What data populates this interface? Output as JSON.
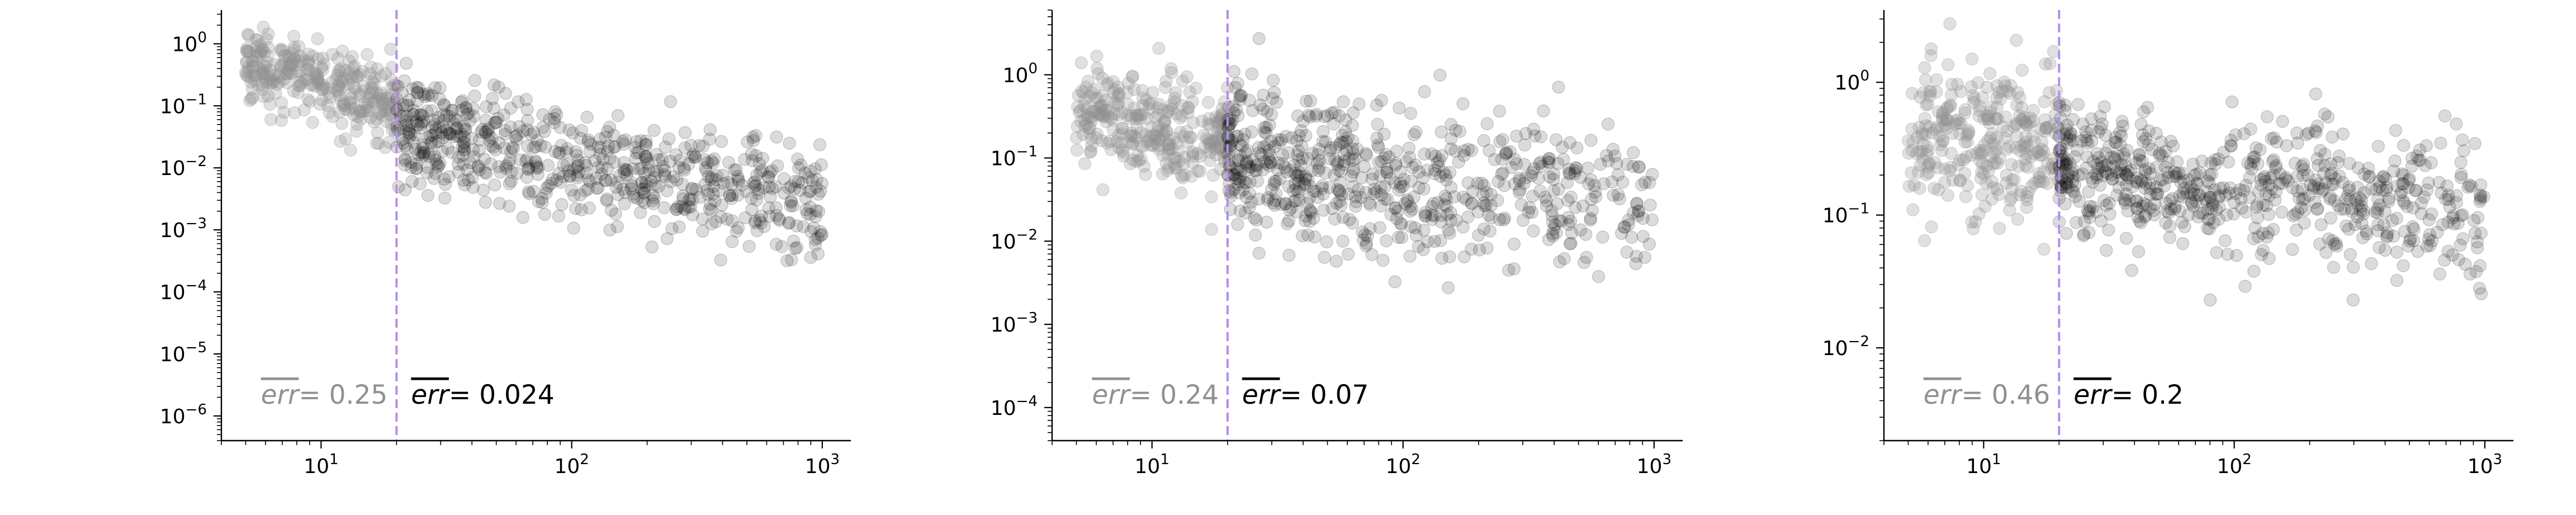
{
  "figure": {
    "background": "#ffffff",
    "reference_color": "#b48cf0",
    "left_color": "#8f918f",
    "right_color": "#000000"
  },
  "chart_data": [
    {
      "type": "scatter",
      "title": "",
      "xlabel": "",
      "ylabel": "",
      "xscale": "log",
      "yscale": "log",
      "xlim": [
        4,
        1300
      ],
      "ylim": [
        4e-07,
        3.5
      ],
      "x_ticks": [
        10,
        100,
        1000
      ],
      "x_tick_labels": [
        {
          "base": "10",
          "exp": "1"
        },
        {
          "base": "10",
          "exp": "2"
        },
        {
          "base": "10",
          "exp": "3"
        }
      ],
      "y_ticks": [
        1e-06,
        1e-05,
        0.0001,
        0.001,
        0.01,
        0.1,
        1
      ],
      "y_tick_labels": [
        {
          "base": "10",
          "exp": "−6"
        },
        {
          "base": "10",
          "exp": "−5"
        },
        {
          "base": "10",
          "exp": "−4"
        },
        {
          "base": "10",
          "exp": "−3"
        },
        {
          "base": "10",
          "exp": "−2"
        },
        {
          "base": "10",
          "exp": "−1"
        },
        {
          "base": "10",
          "exp": "0"
        }
      ],
      "threshold_x": 20,
      "grid": false,
      "series": [
        {
          "side": "left",
          "color": "#8f918f",
          "x_range": [
            5,
            20
          ],
          "trend": [
            [
              5,
              0.5
            ],
            [
              20,
              0.1
            ]
          ],
          "spread_decades": 0.32
        },
        {
          "side": "right",
          "color": "#000000",
          "x_range": [
            20,
            1000
          ],
          "trend": [
            [
              20,
              0.05
            ],
            [
              100,
              0.012
            ],
            [
              1000,
              0.0025
            ]
          ],
          "spread_decades": 0.45
        }
      ],
      "annotations": {
        "left": {
          "label": "err",
          "value": "= 0.25"
        },
        "right": {
          "label": "err",
          "value": "= 0.024"
        }
      }
    },
    {
      "type": "scatter",
      "title": "",
      "xlabel": "",
      "ylabel": "",
      "xscale": "log",
      "yscale": "log",
      "xlim": [
        4,
        1300
      ],
      "ylim": [
        4e-05,
        6
      ],
      "x_ticks": [
        10,
        100,
        1000
      ],
      "x_tick_labels": [
        {
          "base": "10",
          "exp": "1"
        },
        {
          "base": "10",
          "exp": "2"
        },
        {
          "base": "10",
          "exp": "3"
        }
      ],
      "y_ticks": [
        0.0001,
        0.001,
        0.01,
        0.1,
        1
      ],
      "y_tick_labels": [
        {
          "base": "10",
          "exp": "−4"
        },
        {
          "base": "10",
          "exp": "−3"
        },
        {
          "base": "10",
          "exp": "−2"
        },
        {
          "base": "10",
          "exp": "−1"
        },
        {
          "base": "10",
          "exp": "0"
        }
      ],
      "threshold_x": 20,
      "grid": false,
      "series": [
        {
          "side": "left",
          "color": "#8f918f",
          "x_range": [
            5,
            20
          ],
          "trend": [
            [
              5,
              0.4
            ],
            [
              20,
              0.15
            ]
          ],
          "spread_decades": 0.3
        },
        {
          "side": "right",
          "color": "#000000",
          "x_range": [
            20,
            1000
          ],
          "trend": [
            [
              20,
              0.12
            ],
            [
              100,
              0.04
            ],
            [
              1000,
              0.03
            ]
          ],
          "spread_decades": 0.45
        }
      ],
      "annotations": {
        "left": {
          "label": "err",
          "value": "= 0.24"
        },
        "right": {
          "label": "err",
          "value": "= 0.07"
        }
      }
    },
    {
      "type": "scatter",
      "title": "",
      "xlabel": "",
      "ylabel": "",
      "xscale": "log",
      "yscale": "log",
      "xlim": [
        4,
        1300
      ],
      "ylim": [
        0.002,
        3.5
      ],
      "x_ticks": [
        10,
        100,
        1000
      ],
      "x_tick_labels": [
        {
          "base": "10",
          "exp": "1"
        },
        {
          "base": "10",
          "exp": "2"
        },
        {
          "base": "10",
          "exp": "3"
        }
      ],
      "y_ticks": [
        0.01,
        0.1,
        1
      ],
      "y_tick_labels": [
        {
          "base": "10",
          "exp": "−2"
        },
        {
          "base": "10",
          "exp": "−1"
        },
        {
          "base": "10",
          "exp": "0"
        }
      ],
      "threshold_x": 20,
      "grid": false,
      "series": [
        {
          "side": "left",
          "color": "#8f918f",
          "x_range": [
            5,
            20
          ],
          "trend": [
            [
              5,
              0.45
            ],
            [
              20,
              0.3
            ]
          ],
          "spread_decades": 0.28
        },
        {
          "side": "right",
          "color": "#000000",
          "x_range": [
            20,
            1000
          ],
          "trend": [
            [
              20,
              0.25
            ],
            [
              100,
              0.15
            ],
            [
              1000,
              0.1
            ]
          ],
          "spread_decades": 0.25
        }
      ],
      "annotations": {
        "left": {
          "label": "err",
          "value": "= 0.46"
        },
        "right": {
          "label": "err",
          "value": "= 0.2"
        }
      }
    }
  ]
}
